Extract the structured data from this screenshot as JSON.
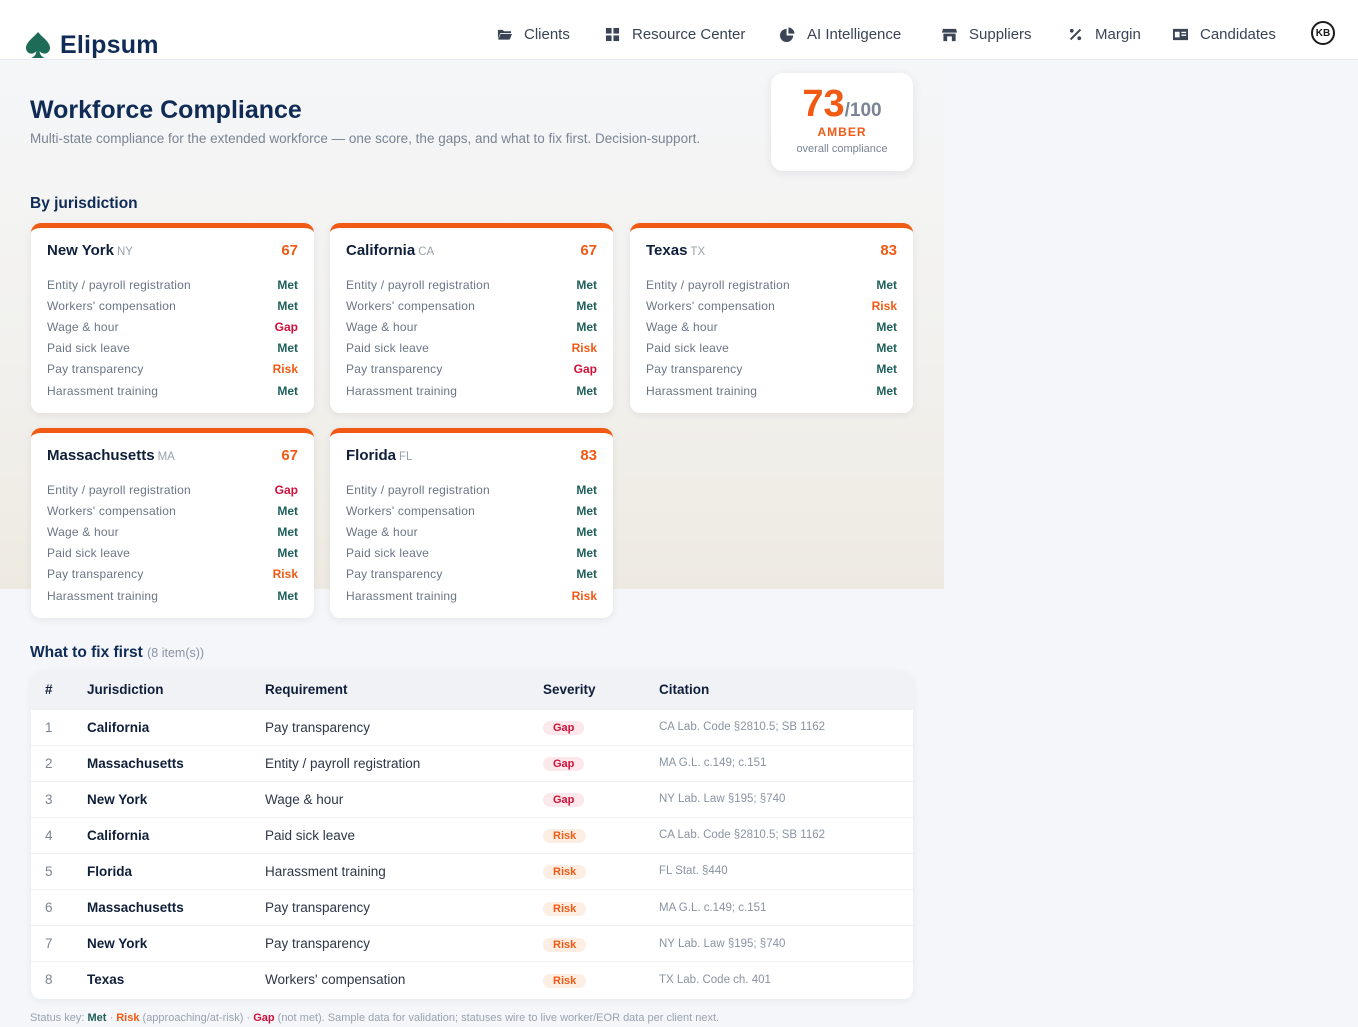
{
  "brand": {
    "name": "Elipsum"
  },
  "nav": [
    {
      "label": "Clients",
      "icon": "folder-icon"
    },
    {
      "label": "Resource Center",
      "icon": "grid-icon"
    },
    {
      "label": "AI Intelligence",
      "icon": "pie-chart-icon"
    },
    {
      "label": "Suppliers",
      "icon": "store-icon"
    },
    {
      "label": "Margin",
      "icon": "percent-icon"
    },
    {
      "label": "Candidates",
      "icon": "id-card-icon"
    }
  ],
  "user": {
    "initials": "KB"
  },
  "page": {
    "title": "Workforce Compliance",
    "subtitle": "Multi-state compliance for the extended workforce — one score, the gaps, and what to fix first. Decision-support."
  },
  "score": {
    "value": "73",
    "max": "/100",
    "band": "AMBER",
    "caption": "overall compliance"
  },
  "jurisdictions_heading": "By jurisdiction",
  "jurisdictions": [
    {
      "name": "New York",
      "code": "NY",
      "score": "67",
      "rows": [
        {
          "req": "Entity / payroll registration",
          "status": "Met"
        },
        {
          "req": "Workers' compensation",
          "status": "Met"
        },
        {
          "req": "Wage & hour",
          "status": "Gap"
        },
        {
          "req": "Paid sick leave",
          "status": "Met"
        },
        {
          "req": "Pay transparency",
          "status": "Risk"
        },
        {
          "req": "Harassment training",
          "status": "Met"
        }
      ]
    },
    {
      "name": "California",
      "code": "CA",
      "score": "67",
      "rows": [
        {
          "req": "Entity / payroll registration",
          "status": "Met"
        },
        {
          "req": "Workers' compensation",
          "status": "Met"
        },
        {
          "req": "Wage & hour",
          "status": "Met"
        },
        {
          "req": "Paid sick leave",
          "status": "Risk"
        },
        {
          "req": "Pay transparency",
          "status": "Gap"
        },
        {
          "req": "Harassment training",
          "status": "Met"
        }
      ]
    },
    {
      "name": "Texas",
      "code": "TX",
      "score": "83",
      "rows": [
        {
          "req": "Entity / payroll registration",
          "status": "Met"
        },
        {
          "req": "Workers' compensation",
          "status": "Risk"
        },
        {
          "req": "Wage & hour",
          "status": "Met"
        },
        {
          "req": "Paid sick leave",
          "status": "Met"
        },
        {
          "req": "Pay transparency",
          "status": "Met"
        },
        {
          "req": "Harassment training",
          "status": "Met"
        }
      ]
    },
    {
      "name": "Massachusetts",
      "code": "MA",
      "score": "67",
      "rows": [
        {
          "req": "Entity / payroll registration",
          "status": "Gap"
        },
        {
          "req": "Workers' compensation",
          "status": "Met"
        },
        {
          "req": "Wage & hour",
          "status": "Met"
        },
        {
          "req": "Paid sick leave",
          "status": "Met"
        },
        {
          "req": "Pay transparency",
          "status": "Risk"
        },
        {
          "req": "Harassment training",
          "status": "Met"
        }
      ]
    },
    {
      "name": "Florida",
      "code": "FL",
      "score": "83",
      "rows": [
        {
          "req": "Entity / payroll registration",
          "status": "Met"
        },
        {
          "req": "Workers' compensation",
          "status": "Met"
        },
        {
          "req": "Wage & hour",
          "status": "Met"
        },
        {
          "req": "Paid sick leave",
          "status": "Met"
        },
        {
          "req": "Pay transparency",
          "status": "Met"
        },
        {
          "req": "Harassment training",
          "status": "Risk"
        }
      ]
    }
  ],
  "fix": {
    "heading": "What to fix first",
    "count": "(8 item(s))",
    "columns": [
      "#",
      "Jurisdiction",
      "Requirement",
      "Severity",
      "Citation"
    ],
    "rows": [
      {
        "n": "1",
        "jurisdiction": "California",
        "requirement": "Pay transparency",
        "severity": "Gap",
        "citation": "CA Lab. Code §2810.5; SB 1162"
      },
      {
        "n": "2",
        "jurisdiction": "Massachusetts",
        "requirement": "Entity / payroll registration",
        "severity": "Gap",
        "citation": "MA G.L. c.149; c.151"
      },
      {
        "n": "3",
        "jurisdiction": "New York",
        "requirement": "Wage & hour",
        "severity": "Gap",
        "citation": "NY Lab. Law §195; §740"
      },
      {
        "n": "4",
        "jurisdiction": "California",
        "requirement": "Paid sick leave",
        "severity": "Risk",
        "citation": "CA Lab. Code §2810.5; SB 1162"
      },
      {
        "n": "5",
        "jurisdiction": "Florida",
        "requirement": "Harassment training",
        "severity": "Risk",
        "citation": "FL Stat. §440"
      },
      {
        "n": "6",
        "jurisdiction": "Massachusetts",
        "requirement": "Pay transparency",
        "severity": "Risk",
        "citation": "MA G.L. c.149; c.151"
      },
      {
        "n": "7",
        "jurisdiction": "New York",
        "requirement": "Pay transparency",
        "severity": "Risk",
        "citation": "NY Lab. Law §195; §740"
      },
      {
        "n": "8",
        "jurisdiction": "Texas",
        "requirement": "Workers' compensation",
        "severity": "Risk",
        "citation": "TX Lab. Code ch. 401"
      }
    ]
  },
  "footer": {
    "prefix": "Status key: ",
    "met": "Met",
    "sep1": " · ",
    "risk": "Risk",
    "risk_desc": " (approaching/at-risk) · ",
    "gap": "Gap",
    "gap_desc": " (not met). Sample data for validation; statuses wire to live worker/EOR data per client next."
  },
  "colors": {
    "accent": "#f05a14",
    "met": "#1f5f5a",
    "gap": "#d0103a",
    "brand": "#0f2b56"
  }
}
